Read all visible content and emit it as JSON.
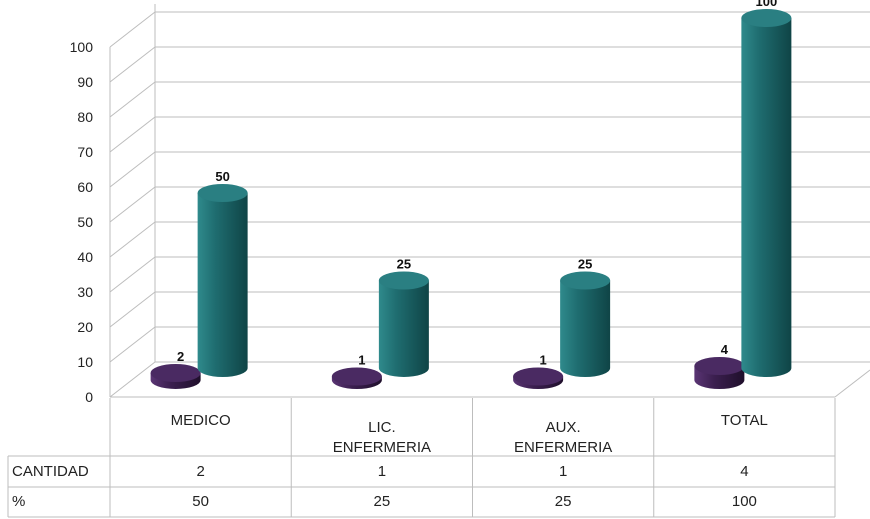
{
  "chart_data": {
    "type": "bar",
    "style": "3d-cylinder",
    "categories": [
      "MEDICO",
      "LIC. ENFERMERIA",
      "AUX. ENFERMERIA",
      "TOTAL"
    ],
    "series": [
      {
        "name": "CANTIDAD",
        "values": [
          2,
          1,
          1,
          4
        ],
        "color": "#3b1f4f"
      },
      {
        "name": "%",
        "values": [
          50,
          25,
          25,
          100
        ],
        "color": "#1e6b6e"
      }
    ],
    "ylim": [
      0,
      100
    ],
    "yticks": [
      0,
      10,
      20,
      30,
      40,
      50,
      60,
      70,
      80,
      90,
      100
    ],
    "grid": true,
    "legend": "data table below",
    "data_table": {
      "rows": [
        {
          "label": "CANTIDAD",
          "values": [
            "2",
            "1",
            "1",
            "4"
          ]
        },
        {
          "label": "%",
          "values": [
            "50",
            "25",
            "25",
            "100"
          ]
        }
      ]
    }
  }
}
